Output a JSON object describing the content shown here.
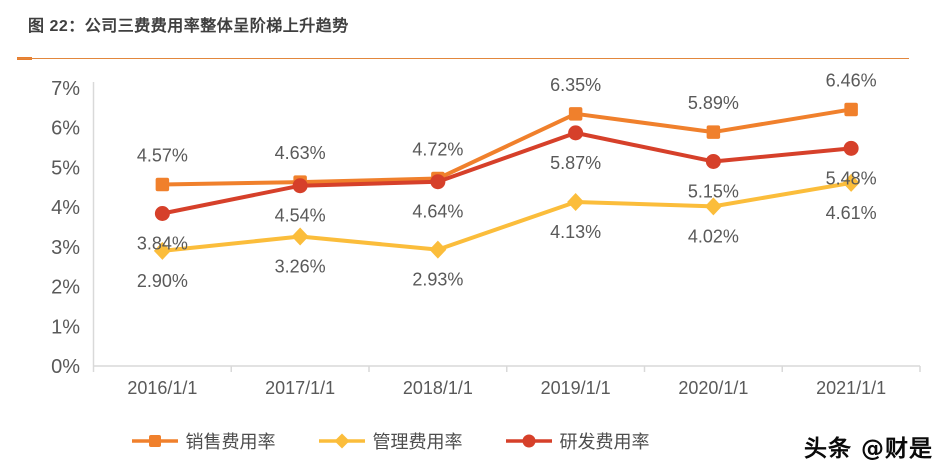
{
  "header": {
    "title": "图 22：公司三费费用率整体呈阶梯上升趋势"
  },
  "watermark": "头条 @财是",
  "colors": {
    "accent_orange": "#e87e2e",
    "title_gray": "#3f3f3f",
    "axis_line": "#d9d9d9",
    "tick_label": "#595959",
    "data_label": "#595959",
    "legend_label": "#4d4d4d"
  },
  "chart_data": {
    "type": "line",
    "title": "公司三费费用率整体呈阶梯上升趋势",
    "x": [
      "2016/1/1",
      "2017/1/1",
      "2018/1/1",
      "2019/1/1",
      "2020/1/1",
      "2021/1/1"
    ],
    "series": [
      {
        "name": "销售费用率",
        "slug": "sales-expense-rate",
        "color": "#f0802c",
        "marker": "square",
        "label_position": "above",
        "values": [
          4.57,
          4.63,
          4.72,
          6.35,
          5.89,
          6.46
        ]
      },
      {
        "name": "管理费用率",
        "slug": "admin-expense-rate",
        "color": "#fbbd3b",
        "marker": "diamond",
        "label_position": "below",
        "values": [
          2.9,
          3.26,
          2.93,
          4.13,
          4.02,
          4.61
        ]
      },
      {
        "name": "研发费用率",
        "slug": "rd-expense-rate",
        "color": "#d6402a",
        "marker": "circle",
        "label_position": "below",
        "values": [
          3.84,
          4.54,
          4.64,
          5.87,
          5.15,
          5.48
        ]
      }
    ],
    "ylim": [
      0,
      7
    ],
    "yticks": [
      "0%",
      "1%",
      "2%",
      "3%",
      "4%",
      "5%",
      "6%",
      "7%"
    ],
    "label_suffix": "%",
    "grid": false,
    "legend_position": "bottom"
  }
}
